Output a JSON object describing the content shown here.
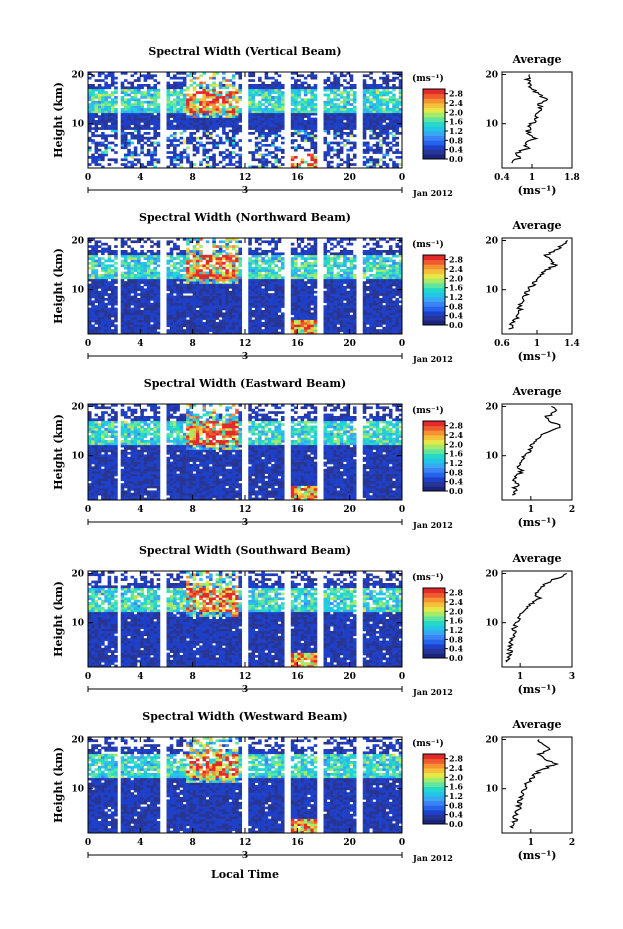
{
  "figure": {
    "xlabel": "Local Time",
    "ylabel": "Height (km)",
    "colorbar_unit": "(ms⁻¹)",
    "avg_title": "Average",
    "avg_unit": "(ms⁻¹)",
    "date_day": "3",
    "date_label": "Jan 2012",
    "colormap": [
      "#1a237e",
      "#283593",
      "#1e40c8",
      "#2563eb",
      "#3b82f6",
      "#38a9f0",
      "#22c6e8",
      "#25d9c8",
      "#5ee6a0",
      "#a6ea6a",
      "#e6e84a",
      "#f5c13a",
      "#f59332",
      "#ef5a2e",
      "#e22a2a"
    ]
  },
  "chart_data": [
    {
      "type": "heatmap",
      "title": "Spectral Width (Vertical Beam)",
      "x_ticks": [
        "0",
        "4",
        "8",
        "12",
        "16",
        "20",
        "0"
      ],
      "xlim": [
        0,
        24
      ],
      "y_ticks": [
        "10",
        "20"
      ],
      "ylim": [
        1,
        20.5
      ],
      "colorbar_ticks": [
        "0.0",
        "0.4",
        "0.8",
        "1.2",
        "1.6",
        "2.0",
        "2.4",
        "2.8"
      ],
      "colorbar_range": [
        0,
        3.0
      ],
      "data_gaps_hours": [
        [
          2.2,
          2.6
        ],
        [
          5.6,
          6.0
        ],
        [
          11.8,
          12.2
        ],
        [
          15.0,
          15.4
        ],
        [
          17.6,
          17.9
        ],
        [
          20.6,
          21.0
        ]
      ],
      "average": {
        "xlim": [
          0.4,
          1.8
        ],
        "x_ticks": [
          "0.4",
          "1",
          "1.8"
        ],
        "y_ticks": [
          "10",
          "20"
        ],
        "height_km": [
          2,
          3,
          4,
          5,
          6,
          7,
          8,
          9,
          10,
          11,
          12,
          13,
          14,
          15,
          16,
          17,
          18,
          19,
          20
        ],
        "width_ms": [
          0.55,
          0.75,
          0.7,
          0.9,
          0.85,
          1.05,
          0.9,
          0.95,
          1.0,
          1.1,
          1.05,
          1.2,
          1.15,
          1.3,
          1.1,
          1.0,
          0.95,
          0.9,
          0.95
        ]
      }
    },
    {
      "type": "heatmap",
      "title": "Spectral Width (Northward Beam)",
      "x_ticks": [
        "0",
        "4",
        "8",
        "12",
        "16",
        "20",
        "0"
      ],
      "xlim": [
        0,
        24
      ],
      "y_ticks": [
        "10",
        "20"
      ],
      "ylim": [
        1,
        20.5
      ],
      "colorbar_ticks": [
        "0.0",
        "0.4",
        "0.8",
        "1.2",
        "1.6",
        "2.0",
        "2.4",
        "2.8"
      ],
      "colorbar_range": [
        0,
        3.0
      ],
      "data_gaps_hours": [
        [
          2.2,
          2.6
        ],
        [
          5.6,
          6.0
        ],
        [
          11.8,
          12.2
        ],
        [
          15.0,
          15.4
        ],
        [
          17.6,
          17.9
        ],
        [
          20.6,
          21.0
        ]
      ],
      "average": {
        "xlim": [
          0.6,
          1.4
        ],
        "x_ticks": [
          "0.6",
          "1",
          "1.4"
        ],
        "y_ticks": [
          "10",
          "20"
        ],
        "height_km": [
          2,
          3,
          4,
          5,
          6,
          7,
          8,
          9,
          10,
          11,
          12,
          13,
          14,
          15,
          16,
          17,
          18,
          19,
          20
        ],
        "width_ms": [
          0.7,
          0.72,
          0.75,
          0.78,
          0.8,
          0.82,
          0.85,
          0.88,
          0.9,
          0.95,
          1.0,
          1.05,
          1.1,
          1.2,
          1.15,
          1.1,
          1.2,
          1.3,
          1.35
        ]
      }
    },
    {
      "type": "heatmap",
      "title": "Spectral Width (Eastward Beam)",
      "x_ticks": [
        "0",
        "4",
        "8",
        "12",
        "16",
        "20",
        "0"
      ],
      "xlim": [
        0,
        24
      ],
      "y_ticks": [
        "10",
        "20"
      ],
      "ylim": [
        1,
        20.5
      ],
      "colorbar_ticks": [
        "0.0",
        "0.4",
        "0.8",
        "1.2",
        "1.6",
        "2.0",
        "2.4",
        "2.8"
      ],
      "colorbar_range": [
        0,
        3.0
      ],
      "data_gaps_hours": [
        [
          2.2,
          2.6
        ],
        [
          5.6,
          6.0
        ],
        [
          11.8,
          12.2
        ],
        [
          15.0,
          15.4
        ],
        [
          17.6,
          17.9
        ],
        [
          20.6,
          21.0
        ]
      ],
      "average": {
        "xlim": [
          0.3,
          2.0
        ],
        "x_ticks": [
          "1",
          "2"
        ],
        "y_ticks": [
          "10",
          "20"
        ],
        "height_km": [
          2,
          3,
          4,
          5,
          6,
          7,
          8,
          9,
          10,
          11,
          12,
          13,
          14,
          15,
          16,
          17,
          18,
          19,
          20
        ],
        "width_ms": [
          0.55,
          0.6,
          0.65,
          0.6,
          0.7,
          0.75,
          0.7,
          0.8,
          0.85,
          0.95,
          1.0,
          1.1,
          1.2,
          1.5,
          1.7,
          1.5,
          1.4,
          1.6,
          1.5
        ]
      }
    },
    {
      "type": "heatmap",
      "title": "Spectral Width (Southward Beam)",
      "x_ticks": [
        "0",
        "4",
        "8",
        "12",
        "16",
        "20",
        "0"
      ],
      "xlim": [
        0,
        24
      ],
      "y_ticks": [
        "10",
        "20"
      ],
      "ylim": [
        1,
        20.5
      ],
      "colorbar_ticks": [
        "0.0",
        "0.4",
        "0.8",
        "1.2",
        "1.6",
        "2.0",
        "2.4",
        "2.8"
      ],
      "colorbar_range": [
        0,
        3.0
      ],
      "data_gaps_hours": [
        [
          2.2,
          2.6
        ],
        [
          5.6,
          6.0
        ],
        [
          11.8,
          12.2
        ],
        [
          15.0,
          15.4
        ],
        [
          17.6,
          17.9
        ],
        [
          20.6,
          21.0
        ]
      ],
      "average": {
        "xlim": [
          0.3,
          3.0
        ],
        "x_ticks": [
          "1",
          "3"
        ],
        "y_ticks": [
          "10",
          "20"
        ],
        "height_km": [
          2,
          3,
          4,
          5,
          6,
          7,
          8,
          9,
          10,
          11,
          12,
          13,
          14,
          15,
          16,
          17,
          18,
          19,
          20
        ],
        "width_ms": [
          0.5,
          0.55,
          0.6,
          0.6,
          0.65,
          0.7,
          0.75,
          0.8,
          0.85,
          0.95,
          1.1,
          1.3,
          1.5,
          1.7,
          1.6,
          1.8,
          2.0,
          2.4,
          2.8
        ]
      }
    },
    {
      "type": "heatmap",
      "title": "Spectral Width (Westward Beam)",
      "x_ticks": [
        "0",
        "4",
        "8",
        "12",
        "16",
        "20",
        "0"
      ],
      "xlim": [
        0,
        24
      ],
      "y_ticks": [
        "10",
        "20"
      ],
      "ylim": [
        1,
        20.5
      ],
      "colorbar_ticks": [
        "0.0",
        "0.4",
        "0.8",
        "1.2",
        "1.6",
        "2.0",
        "2.4",
        "2.8"
      ],
      "colorbar_range": [
        0,
        3.0
      ],
      "data_gaps_hours": [
        [
          2.2,
          2.6
        ],
        [
          5.6,
          6.0
        ],
        [
          11.8,
          12.2
        ],
        [
          15.0,
          15.4
        ],
        [
          17.6,
          17.9
        ],
        [
          20.6,
          21.0
        ]
      ],
      "average": {
        "xlim": [
          0.3,
          2.0
        ],
        "x_ticks": [
          "1",
          "2"
        ],
        "y_ticks": [
          "10",
          "20"
        ],
        "height_km": [
          2,
          3,
          4,
          5,
          6,
          7,
          8,
          9,
          10,
          11,
          12,
          13,
          14,
          15,
          16,
          17,
          18,
          19,
          20
        ],
        "width_ms": [
          0.55,
          0.6,
          0.62,
          0.65,
          0.7,
          0.72,
          0.75,
          0.8,
          0.85,
          0.9,
          1.0,
          1.1,
          1.3,
          1.6,
          1.4,
          1.2,
          1.5,
          1.3,
          1.2
        ]
      }
    }
  ]
}
